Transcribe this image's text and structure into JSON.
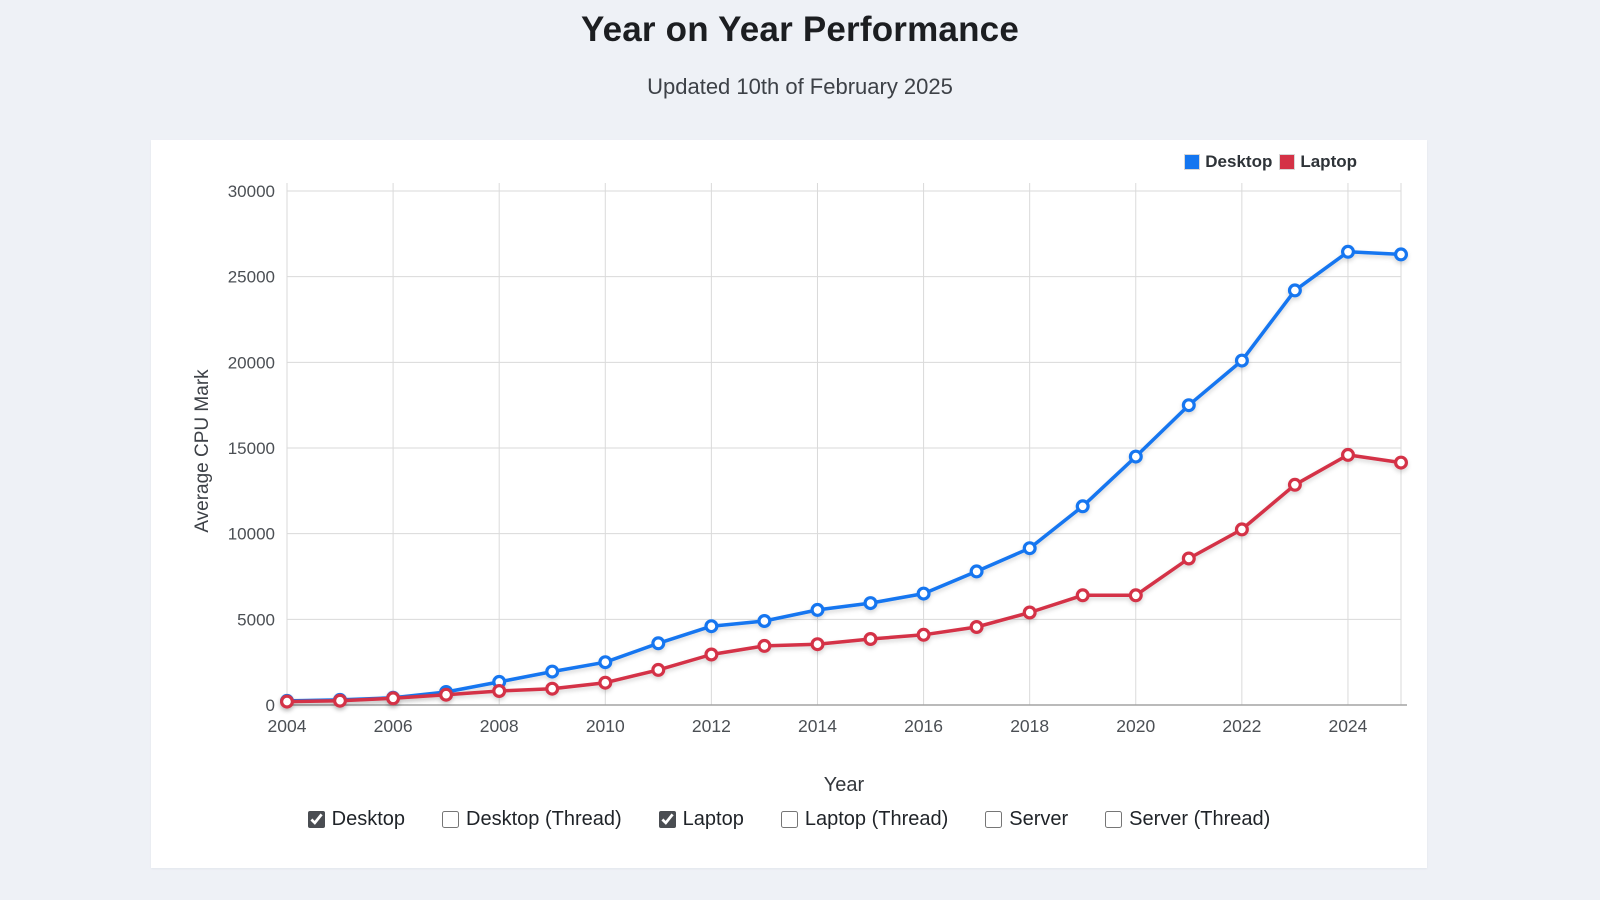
{
  "page": {
    "title": "Year on Year Performance",
    "subtitle": "Updated 10th of February 2025"
  },
  "chart_data": {
    "type": "line",
    "title": "Year on Year Performance",
    "xlabel": "Year",
    "ylabel": "Average CPU Mark",
    "x": [
      2004,
      2005,
      2006,
      2007,
      2008,
      2009,
      2010,
      2011,
      2012,
      2013,
      2014,
      2015,
      2016,
      2017,
      2018,
      2019,
      2020,
      2021,
      2022,
      2023,
      2024,
      2025
    ],
    "series": [
      {
        "name": "Desktop",
        "color": "#1476f0",
        "values": [
          240,
          300,
          420,
          760,
          1350,
          1950,
          2500,
          3600,
          4600,
          4900,
          5550,
          5950,
          6500,
          7800,
          9150,
          11600,
          14500,
          17500,
          20100,
          24200,
          26450,
          26300
        ]
      },
      {
        "name": "Laptop",
        "color": "#d43246",
        "values": [
          200,
          250,
          390,
          600,
          820,
          950,
          1300,
          2050,
          2950,
          3450,
          3550,
          3850,
          4100,
          4550,
          5400,
          6400,
          6400,
          8550,
          10250,
          12850,
          14600,
          14150
        ]
      }
    ],
    "x_ticks": [
      2004,
      2006,
      2008,
      2010,
      2012,
      2014,
      2016,
      2018,
      2020,
      2022,
      2024
    ],
    "y_ticks": [
      0,
      5000,
      10000,
      15000,
      20000,
      25000,
      30000
    ],
    "xlim": [
      2004,
      2025
    ],
    "ylim": [
      0,
      30000
    ],
    "grid": true,
    "legend_position": "top-right"
  },
  "controls": {
    "checkboxes": [
      {
        "label": "Desktop",
        "checked": true
      },
      {
        "label": "Desktop (Thread)",
        "checked": false
      },
      {
        "label": "Laptop",
        "checked": true
      },
      {
        "label": "Laptop (Thread)",
        "checked": false
      },
      {
        "label": "Server",
        "checked": false
      },
      {
        "label": "Server (Thread)",
        "checked": false
      }
    ]
  },
  "colors": {
    "page_background": "#eef1f6",
    "card_background": "#ffffff",
    "grid_line": "#dadada",
    "axis_line": "#a3a3a3",
    "tick_text": "#4b4f54",
    "desktop_series": "#1476f0",
    "laptop_series": "#d43246"
  }
}
